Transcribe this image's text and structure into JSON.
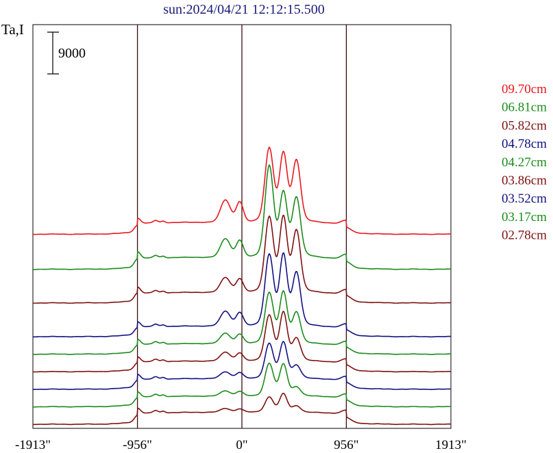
{
  "chart_data": {
    "type": "line",
    "title": "sun:2024/04/21 12:12:15.500",
    "ylabel": "Ta,I",
    "xlabel": "",
    "x_ticks": [
      {
        "value": -1913,
        "label": "-1913\""
      },
      {
        "value": -956,
        "label": "-956\""
      },
      {
        "value": 0,
        "label": "0\""
      },
      {
        "value": 956,
        "label": "956\""
      },
      {
        "value": 1913,
        "label": "1913\""
      }
    ],
    "xlim": [
      -1913,
      1913
    ],
    "vertical_markers": [
      -956,
      0,
      956
    ],
    "scale_bar": {
      "value": 9000,
      "label": "9000"
    },
    "legend_placement": "right",
    "series": [
      {
        "name": "09.70cm",
        "color": "#e8171c",
        "offset": 13.6,
        "background": 0.5,
        "limb": 1.4,
        "limb_peak": 1.2,
        "center": 3.0,
        "p1": 6.2,
        "p1b": 6.0,
        "p2": 5.8
      },
      {
        "name": "06.81cm",
        "color": "#1b8a1b",
        "offset": 11.1,
        "background": 0.4,
        "limb": 1.3,
        "limb_peak": 1.5,
        "center": 2.5,
        "p1": 7.7,
        "p1b": 5.5,
        "p2": 5.5
      },
      {
        "name": "05.82cm",
        "color": "#7d1010",
        "offset": 8.6,
        "background": 0.4,
        "limb": 1.2,
        "limb_peak": 1.4,
        "center": 2.0,
        "p1": 6.3,
        "p1b": 6.6,
        "p2": 5.8
      },
      {
        "name": "04.78cm",
        "color": "#101080",
        "offset": 6.1,
        "background": 0.4,
        "limb": 1.2,
        "limb_peak": 1.2,
        "center": 2.0,
        "p1": 6.0,
        "p1b": 6.3,
        "p2": 5.0
      },
      {
        "name": "04.27cm",
        "color": "#1b8a1b",
        "offset": 4.8,
        "background": 0.4,
        "limb": 1.2,
        "limb_peak": 1.2,
        "center": 1.4,
        "p1": 4.3,
        "p1b": 4.6,
        "p2": 2.9
      },
      {
        "name": "03.86cm",
        "color": "#7d1010",
        "offset": 3.5,
        "background": 0.4,
        "limb": 1.2,
        "limb_peak": 1.2,
        "center": 1.2,
        "p1": 3.9,
        "p1b": 4.4,
        "p2": 2.1
      },
      {
        "name": "03.52cm",
        "color": "#101080",
        "offset": 2.2,
        "background": 0.4,
        "limb": 1.2,
        "limb_peak": 1.2,
        "center": 0.9,
        "p1": 3.0,
        "p1b": 3.3,
        "p2": 1.2
      },
      {
        "name": "03.17cm",
        "color": "#1b8a1b",
        "offset": 0.9,
        "background": 0.4,
        "limb": 1.2,
        "limb_peak": 1.2,
        "center": 0.7,
        "p1": 2.8,
        "p1b": 2.9,
        "p2": 0.8
      },
      {
        "name": "02.78cm",
        "color": "#7d1010",
        "offset": -0.4,
        "background": 0.4,
        "limb": 1.3,
        "limb_peak": 1.2,
        "center": 0.5,
        "p1": 1.3,
        "p1b": 1.7,
        "p2": 0.6
      }
    ]
  }
}
